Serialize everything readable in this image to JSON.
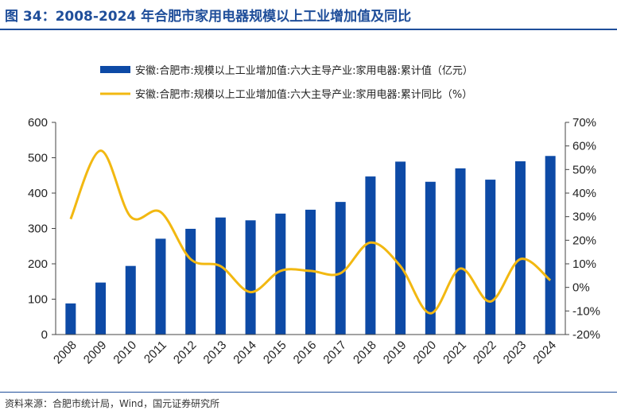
{
  "figure": {
    "title": "图 34：2008-2024 年合肥市家用电器规模以上工业增加值及同比",
    "source": "资料来源：合肥市统计局，Wind，国元证券研究所"
  },
  "colors": {
    "bar": "#0d4aa6",
    "line": "#f2b811",
    "title": "#1f4e9a"
  },
  "chart_data": {
    "type": "bar",
    "categories": [
      "2008",
      "2009",
      "2010",
      "2011",
      "2012",
      "2013",
      "2014",
      "2015",
      "2016",
      "2017",
      "2018",
      "2019",
      "2020",
      "2021",
      "2022",
      "2023",
      "2024"
    ],
    "series": [
      {
        "name": "安徽:合肥市:规模以上工业增加值:六大主导产业:家用电器:累计值（亿元）",
        "type": "bar",
        "axis": "left",
        "values": [
          88,
          147,
          194,
          271,
          299,
          331,
          323,
          342,
          353,
          375,
          447,
          489,
          432,
          470,
          438,
          490,
          505
        ]
      },
      {
        "name": "安徽:合肥市:规模以上工业增加值:六大主导产业:家用电器:累计同比（%）",
        "type": "line",
        "axis": "right",
        "values": [
          29,
          58,
          30,
          32,
          12,
          9,
          -2,
          7,
          7,
          6,
          19,
          9,
          -11,
          8,
          -6,
          12,
          3
        ]
      }
    ],
    "y_left": {
      "min": 0,
      "max": 600,
      "ticks": [
        0,
        100,
        200,
        300,
        400,
        500,
        600
      ]
    },
    "y_right": {
      "min": -20,
      "max": 70,
      "ticks": [
        "-20%",
        "-10%",
        "0%",
        "10%",
        "20%",
        "30%",
        "40%",
        "50%",
        "60%",
        "70%"
      ]
    },
    "legend_position": "top",
    "grid": false
  }
}
